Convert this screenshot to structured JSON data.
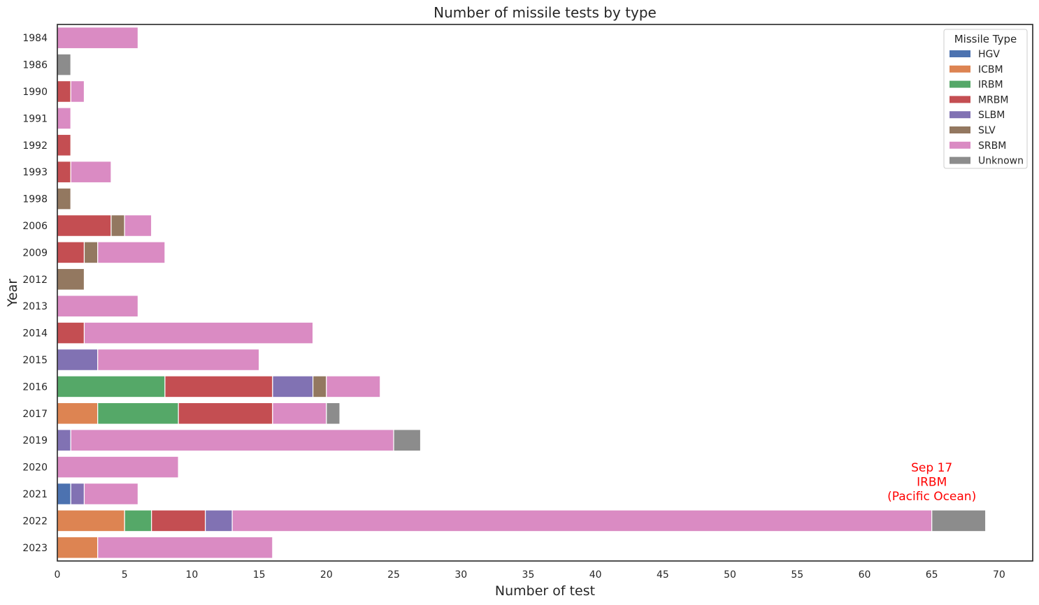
{
  "chart_data": {
    "type": "bar",
    "orientation": "horizontal",
    "stacked": true,
    "title": "Number of missile tests by type",
    "xlabel": "Number of test",
    "ylabel": "Year",
    "xlim": [
      0,
      72.5
    ],
    "xticks": [
      0,
      5,
      10,
      15,
      20,
      25,
      30,
      35,
      40,
      45,
      50,
      55,
      60,
      65,
      70
    ],
    "grid": false,
    "legend": {
      "title": "Missile Type",
      "position": "top-right"
    },
    "categories": [
      "1984",
      "1986",
      "1990",
      "1991",
      "1992",
      "1993",
      "1998",
      "2006",
      "2009",
      "2012",
      "2013",
      "2014",
      "2015",
      "2016",
      "2017",
      "2019",
      "2020",
      "2021",
      "2022",
      "2023"
    ],
    "series": [
      {
        "name": "HGV",
        "color": "#4c72b0",
        "values": [
          0,
          0,
          0,
          0,
          0,
          0,
          0,
          0,
          0,
          0,
          0,
          0,
          0,
          0,
          0,
          0,
          0,
          1,
          0,
          0
        ]
      },
      {
        "name": "ICBM",
        "color": "#dd8452",
        "values": [
          0,
          0,
          0,
          0,
          0,
          0,
          0,
          0,
          0,
          0,
          0,
          0,
          0,
          0,
          3,
          0,
          0,
          0,
          5,
          3
        ]
      },
      {
        "name": "IRBM",
        "color": "#55a868",
        "values": [
          0,
          0,
          0,
          0,
          0,
          0,
          0,
          0,
          0,
          0,
          0,
          0,
          0,
          8,
          6,
          0,
          0,
          0,
          2,
          0
        ]
      },
      {
        "name": "MRBM",
        "color": "#c44e52",
        "values": [
          0,
          0,
          1,
          0,
          1,
          1,
          0,
          4,
          2,
          0,
          0,
          2,
          0,
          8,
          7,
          0,
          0,
          0,
          4,
          0
        ]
      },
      {
        "name": "SLBM",
        "color": "#8172b3",
        "values": [
          0,
          0,
          0,
          0,
          0,
          0,
          0,
          0,
          0,
          0,
          0,
          0,
          3,
          3,
          0,
          1,
          0,
          1,
          2,
          0
        ]
      },
      {
        "name": "SLV",
        "color": "#937860",
        "values": [
          0,
          0,
          0,
          0,
          0,
          0,
          1,
          1,
          1,
          2,
          0,
          0,
          0,
          1,
          0,
          0,
          0,
          0,
          0,
          0
        ]
      },
      {
        "name": "SRBM",
        "color": "#da8bc3",
        "values": [
          6,
          0,
          1,
          1,
          0,
          3,
          0,
          2,
          5,
          0,
          6,
          17,
          12,
          4,
          4,
          24,
          9,
          4,
          52,
          13
        ]
      },
      {
        "name": "Unknown",
        "color": "#8c8c8c",
        "values": [
          0,
          1,
          0,
          0,
          0,
          0,
          0,
          0,
          0,
          0,
          0,
          0,
          0,
          0,
          1,
          2,
          0,
          0,
          4,
          0
        ]
      }
    ],
    "annotation": {
      "lines": [
        "Sep 17",
        "IRBM",
        "(Pacific Ocean)"
      ],
      "x": 65,
      "y_category": "2022",
      "color": "#ff0000"
    }
  }
}
